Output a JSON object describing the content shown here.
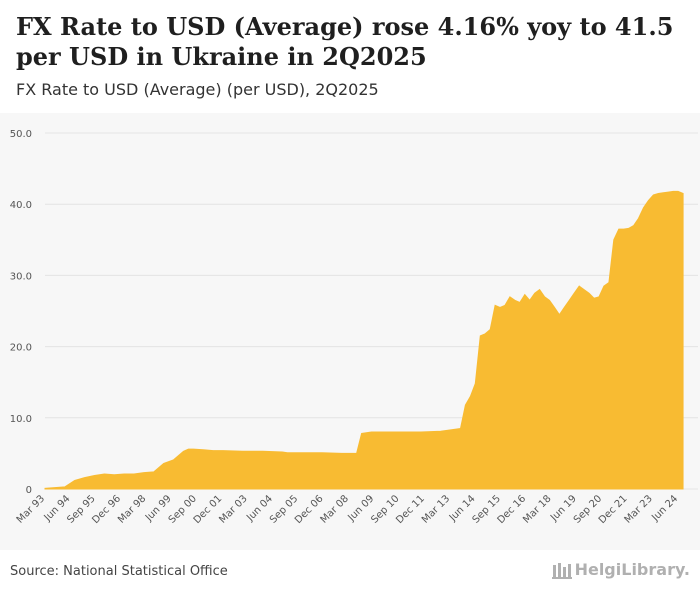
{
  "header": {
    "title": "FX Rate to USD (Average) rose 4.16% yoy to 41.5 per USD in Ukraine in 2Q2025",
    "subtitle": "FX Rate to USD (Average) (per USD), 2Q2025"
  },
  "footer": {
    "source": "Source: National Statistical Office",
    "brand": "HelgiLibrary."
  },
  "colors": {
    "fill": "#f8bb32",
    "grid": "#e4e4e4",
    "axis_text": "#555555",
    "background": "#f7f7f7"
  },
  "chart_data": {
    "type": "area",
    "title": "FX Rate to USD (Average) (per USD), 2Q2025",
    "xlabel": "",
    "ylabel": "",
    "ylim": [
      0,
      50
    ],
    "yticks": [
      "0",
      "10.0",
      "20.0",
      "30.0",
      "40.0",
      "50.0"
    ],
    "grid": true,
    "legend": "none",
    "xtick_labels": [
      "Mar 93",
      "Jun 94",
      "Sep 95",
      "Dec 96",
      "Mar 98",
      "Jun 99",
      "Sep 00",
      "Dec 01",
      "Mar 03",
      "Jun 04",
      "Sep 05",
      "Dec 06",
      "Mar 08",
      "Jun 09",
      "Sep 10",
      "Dec 11",
      "Mar 13",
      "Jun 14",
      "Sep 15",
      "Dec 16",
      "Mar 18",
      "Jun 19",
      "Sep 20",
      "Dec 21",
      "Mar 23",
      "Jun 24"
    ],
    "series": [
      {
        "name": "FX Rate to USD (Average)",
        "x": [
          1993.0,
          1994.0,
          1994.5,
          1995.0,
          1995.5,
          1996.0,
          1996.5,
          1997.0,
          1997.5,
          1998.0,
          1998.5,
          1999.0,
          1999.5,
          2000.0,
          2000.25,
          2000.5,
          2001.0,
          2001.5,
          2002.0,
          2003.0,
          2004.0,
          2005.0,
          2005.25,
          2006.0,
          2007.0,
          2008.0,
          2008.25,
          2008.75,
          2009.0,
          2009.5,
          2010.0,
          2011.0,
          2012.0,
          2013.0,
          2014.0,
          2014.25,
          2014.5,
          2014.75,
          2015.0,
          2015.25,
          2015.5,
          2015.75,
          2016.0,
          2016.25,
          2016.5,
          2016.75,
          2017.0,
          2017.25,
          2017.5,
          2017.75,
          2018.0,
          2018.25,
          2018.5,
          2018.75,
          2019.0,
          2019.25,
          2019.5,
          2019.75,
          2020.0,
          2020.25,
          2020.5,
          2020.75,
          2021.0,
          2021.25,
          2021.5,
          2021.75,
          2022.0,
          2022.25,
          2022.5,
          2022.75,
          2023.0,
          2023.25,
          2023.5,
          2023.75,
          2024.0,
          2024.25,
          2024.5,
          2024.75,
          2025.0,
          2025.25
        ],
        "values": [
          0.1,
          0.3,
          1.2,
          1.6,
          1.9,
          2.1,
          2.0,
          2.1,
          2.1,
          2.3,
          2.4,
          3.6,
          4.1,
          5.3,
          5.6,
          5.6,
          5.5,
          5.4,
          5.4,
          5.3,
          5.3,
          5.2,
          5.1,
          5.1,
          5.1,
          5.0,
          5.0,
          5.0,
          7.8,
          8.0,
          8.0,
          8.0,
          8.0,
          8.1,
          8.5,
          11.8,
          13.0,
          14.8,
          21.5,
          21.8,
          22.4,
          25.8,
          25.5,
          25.8,
          27.0,
          26.5,
          26.2,
          27.3,
          26.5,
          27.5,
          28.0,
          27.0,
          26.5,
          25.5,
          24.5,
          25.5,
          26.5,
          27.5,
          28.5,
          28.0,
          27.5,
          26.8,
          27.0,
          28.5,
          29.0,
          35.0,
          36.5,
          36.5,
          36.6,
          37.0,
          38.0,
          39.5,
          40.5,
          41.3,
          41.5,
          41.6,
          41.7,
          41.8,
          41.8,
          41.5
        ]
      }
    ]
  }
}
